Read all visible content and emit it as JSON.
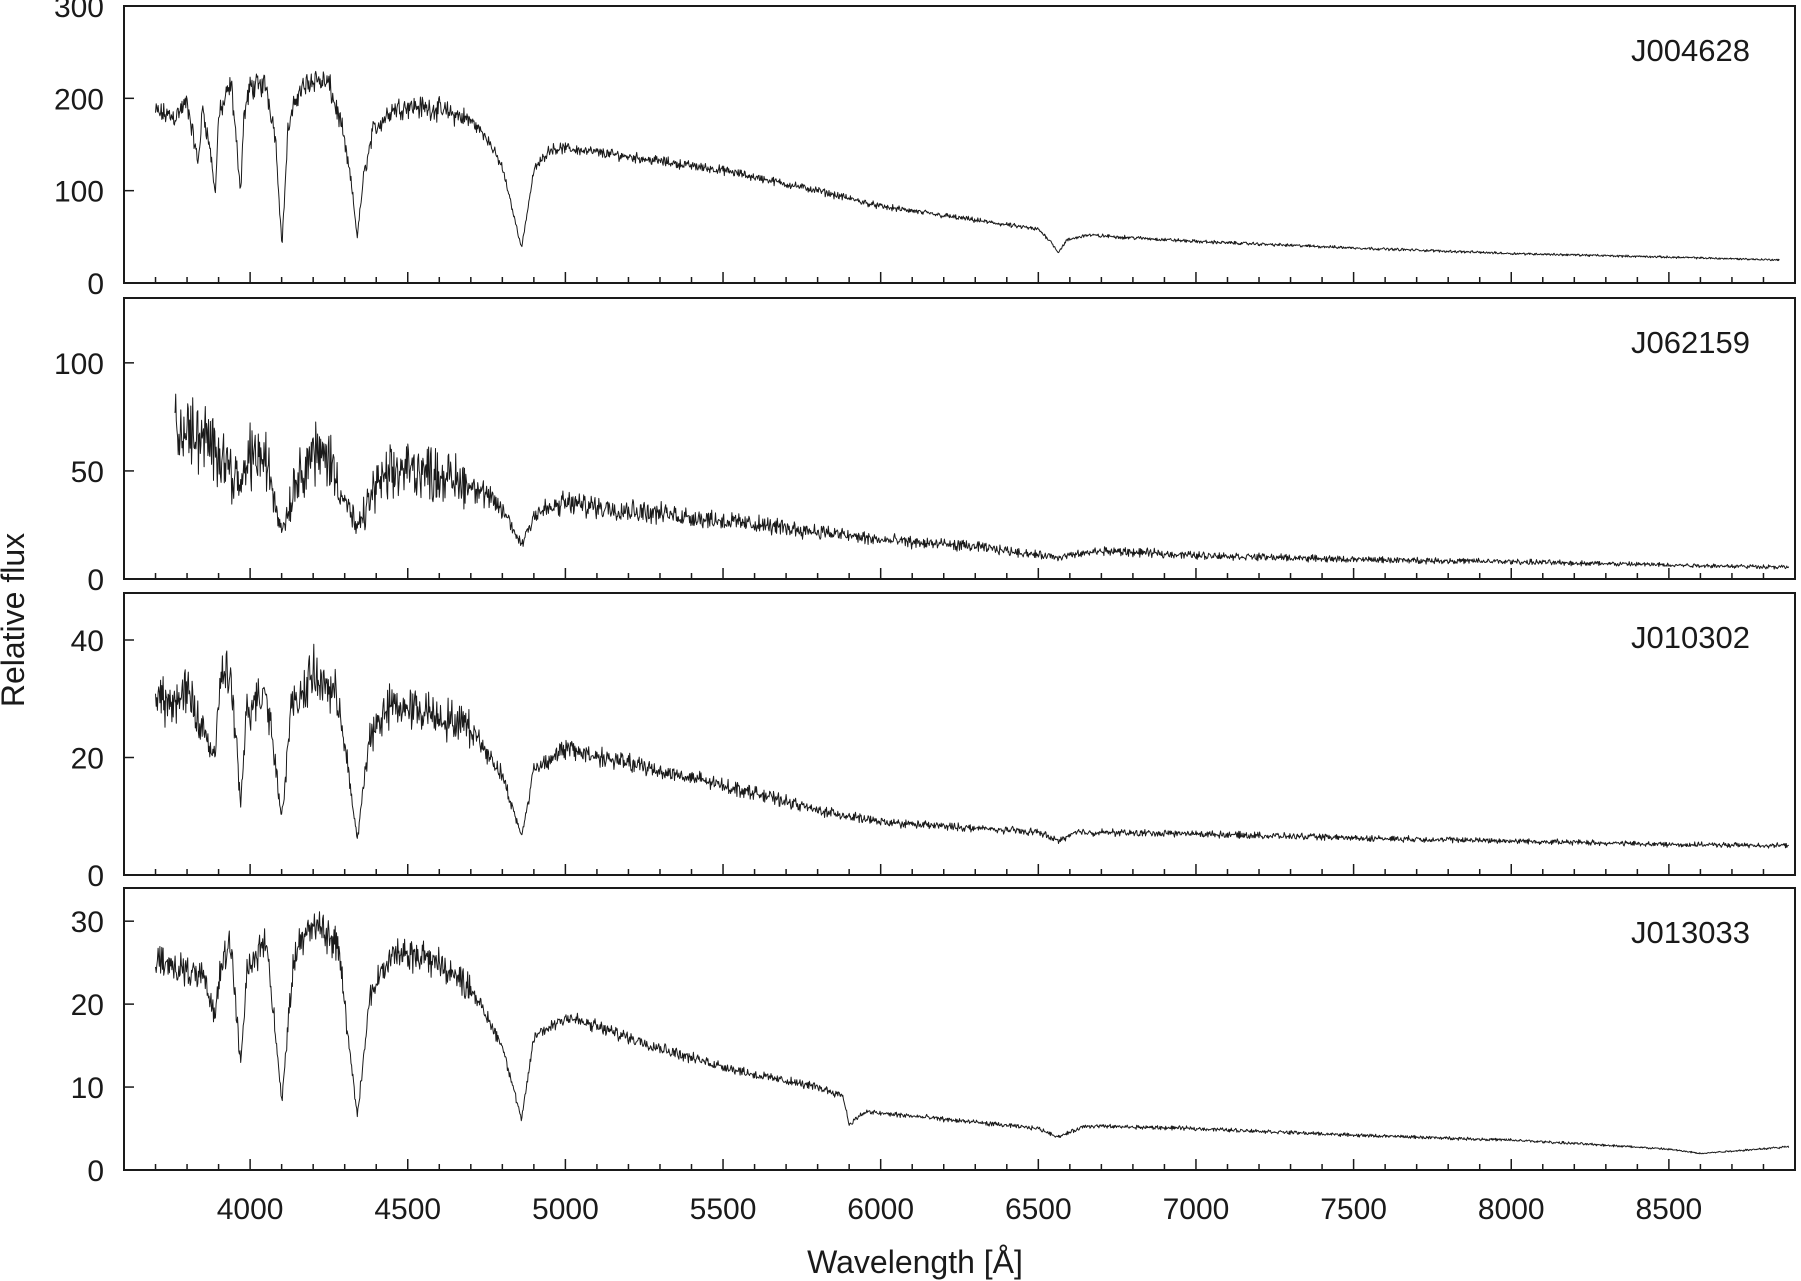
{
  "chart_data": {
    "type": "line",
    "xlabel": "Wavelength [Å]",
    "ylabel": "Relative flux",
    "xlim": [
      3600,
      8900
    ],
    "x_ticks": [
      4000,
      4500,
      5000,
      5500,
      6000,
      6500,
      7000,
      7500,
      8000,
      8500
    ],
    "x_tick_labels": [
      "4000",
      "4500",
      "5000",
      "5500",
      "6000",
      "6500",
      "7000",
      "7500",
      "8000",
      "8500"
    ],
    "line_color": "#1a1a1a",
    "panels": [
      {
        "label": "J004628",
        "ylim": [
          0,
          300
        ],
        "y_ticks": [
          0,
          100,
          200,
          300
        ],
        "y_tick_labels": [
          "0",
          "100",
          "200",
          "300"
        ],
        "noise": 0.05,
        "points": [
          [
            3700,
            185
          ],
          [
            3760,
            180
          ],
          [
            3800,
            195
          ],
          [
            3835,
            130
          ],
          [
            3850,
            190
          ],
          [
            3875,
            140
          ],
          [
            3889,
            95
          ],
          [
            3900,
            180
          ],
          [
            3940,
            215
          ],
          [
            3965,
            120
          ],
          [
            3970,
            100
          ],
          [
            3980,
            180
          ],
          [
            4000,
            212
          ],
          [
            4050,
            215
          ],
          [
            4080,
            160
          ],
          [
            4101,
            40
          ],
          [
            4120,
            165
          ],
          [
            4150,
            205
          ],
          [
            4200,
            222
          ],
          [
            4250,
            215
          ],
          [
            4290,
            170
          ],
          [
            4320,
            110
          ],
          [
            4340,
            50
          ],
          [
            4360,
            115
          ],
          [
            4390,
            165
          ],
          [
            4450,
            188
          ],
          [
            4500,
            192
          ],
          [
            4600,
            188
          ],
          [
            4700,
            176
          ],
          [
            4750,
            158
          ],
          [
            4800,
            125
          ],
          [
            4861,
            38
          ],
          [
            4900,
            122
          ],
          [
            4950,
            145
          ],
          [
            5000,
            146
          ],
          [
            5200,
            137
          ],
          [
            5500,
            122
          ],
          [
            5800,
            100
          ],
          [
            6000,
            83
          ],
          [
            6200,
            73
          ],
          [
            6400,
            63
          ],
          [
            6500,
            58
          ],
          [
            6540,
            45
          ],
          [
            6563,
            33
          ],
          [
            6590,
            46
          ],
          [
            6650,
            52
          ],
          [
            7000,
            45
          ],
          [
            7500,
            38
          ],
          [
            8000,
            32
          ],
          [
            8500,
            28
          ],
          [
            8850,
            25
          ]
        ]
      },
      {
        "label": "J062159",
        "ylim": [
          0,
          130
        ],
        "y_ticks": [
          0,
          50,
          100
        ],
        "y_tick_labels": [
          "0",
          "50",
          "100"
        ],
        "noise": 0.2,
        "points": [
          [
            3760,
            70
          ],
          [
            3800,
            68
          ],
          [
            3850,
            65
          ],
          [
            3889,
            58
          ],
          [
            3900,
            62
          ],
          [
            3970,
            42
          ],
          [
            4000,
            58
          ],
          [
            4050,
            55
          ],
          [
            4101,
            22
          ],
          [
            4150,
            48
          ],
          [
            4200,
            58
          ],
          [
            4250,
            56
          ],
          [
            4340,
            22
          ],
          [
            4400,
            44
          ],
          [
            4500,
            52
          ],
          [
            4600,
            48
          ],
          [
            4700,
            44
          ],
          [
            4800,
            32
          ],
          [
            4861,
            16
          ],
          [
            4900,
            30
          ],
          [
            5000,
            35
          ],
          [
            5200,
            32
          ],
          [
            5500,
            27
          ],
          [
            5800,
            22
          ],
          [
            6000,
            18
          ],
          [
            6300,
            15
          ],
          [
            6563,
            10
          ],
          [
            6700,
            13
          ],
          [
            7000,
            11
          ],
          [
            7500,
            9
          ],
          [
            8000,
            8
          ],
          [
            8500,
            6.5
          ],
          [
            8880,
            5.5
          ]
        ]
      },
      {
        "label": "J010302",
        "ylim": [
          0,
          48
        ],
        "y_ticks": [
          0,
          20,
          40
        ],
        "y_tick_labels": [
          "0",
          "20",
          "40"
        ],
        "noise": 0.1,
        "points": [
          [
            3700,
            30
          ],
          [
            3750,
            29
          ],
          [
            3800,
            31
          ],
          [
            3850,
            25
          ],
          [
            3889,
            20
          ],
          [
            3910,
            35
          ],
          [
            3940,
            33
          ],
          [
            3970,
            12
          ],
          [
            3990,
            28
          ],
          [
            4050,
            32
          ],
          [
            4101,
            10
          ],
          [
            4130,
            28
          ],
          [
            4200,
            34
          ],
          [
            4280,
            30
          ],
          [
            4340,
            6
          ],
          [
            4380,
            24
          ],
          [
            4450,
            29
          ],
          [
            4550,
            28
          ],
          [
            4700,
            25
          ],
          [
            4800,
            17
          ],
          [
            4861,
            6.5
          ],
          [
            4900,
            18
          ],
          [
            5000,
            21.5
          ],
          [
            5200,
            19
          ],
          [
            5400,
            16.5
          ],
          [
            5600,
            14
          ],
          [
            5800,
            11
          ],
          [
            5900,
            10
          ],
          [
            6000,
            9
          ],
          [
            6200,
            8.3
          ],
          [
            6500,
            7.3
          ],
          [
            6563,
            5.8
          ],
          [
            6620,
            7.3
          ],
          [
            7000,
            7
          ],
          [
            7500,
            6.3
          ],
          [
            8000,
            5.8
          ],
          [
            8500,
            5.2
          ],
          [
            8880,
            5
          ]
        ]
      },
      {
        "label": "J013033",
        "ylim": [
          0,
          34
        ],
        "y_ticks": [
          0,
          10,
          20,
          30
        ],
        "y_tick_labels": [
          "0",
          "10",
          "20",
          "30"
        ],
        "noise": 0.06,
        "points": [
          [
            3700,
            25
          ],
          [
            3800,
            24
          ],
          [
            3850,
            23
          ],
          [
            3889,
            19
          ],
          [
            3910,
            26
          ],
          [
            3940,
            27
          ],
          [
            3970,
            12.5
          ],
          [
            3990,
            24
          ],
          [
            4050,
            28
          ],
          [
            4101,
            8.5
          ],
          [
            4140,
            26
          ],
          [
            4200,
            30
          ],
          [
            4280,
            27
          ],
          [
            4340,
            6.5
          ],
          [
            4380,
            21
          ],
          [
            4450,
            26
          ],
          [
            4550,
            26
          ],
          [
            4700,
            22
          ],
          [
            4800,
            15
          ],
          [
            4861,
            6
          ],
          [
            4900,
            16
          ],
          [
            5000,
            18.5
          ],
          [
            5200,
            16
          ],
          [
            5400,
            13.5
          ],
          [
            5600,
            11.5
          ],
          [
            5800,
            10
          ],
          [
            5880,
            9
          ],
          [
            5900,
            5.5
          ],
          [
            5950,
            7
          ],
          [
            6100,
            6.5
          ],
          [
            6500,
            5
          ],
          [
            6563,
            4
          ],
          [
            6650,
            5.3
          ],
          [
            7000,
            5
          ],
          [
            7500,
            4.2
          ],
          [
            8000,
            3.6
          ],
          [
            8300,
            3
          ],
          [
            8500,
            2.5
          ],
          [
            8600,
            2
          ],
          [
            8880,
            2.8
          ]
        ]
      }
    ]
  }
}
